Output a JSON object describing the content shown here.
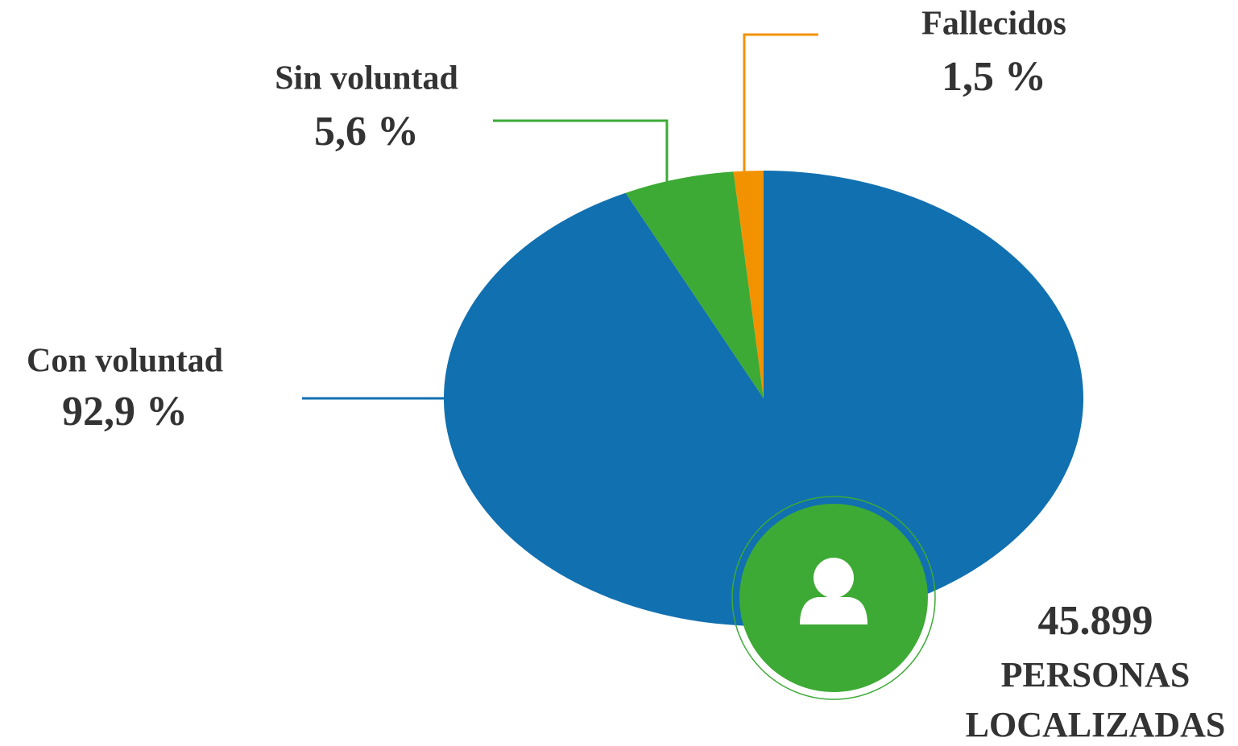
{
  "chart_data": {
    "type": "pie",
    "categories": [
      "Con voluntad",
      "Sin voluntad",
      "Fallecidos"
    ],
    "values": [
      92.9,
      5.6,
      1.5
    ],
    "value_labels": [
      "92,9 %",
      "5,6 %",
      "1,5 %"
    ],
    "colors": [
      "#1170b0",
      "#3daa35",
      "#f39200"
    ],
    "annotations": [
      "45.899",
      "PERSONAS",
      "LOCALIZADAS"
    ]
  }
}
